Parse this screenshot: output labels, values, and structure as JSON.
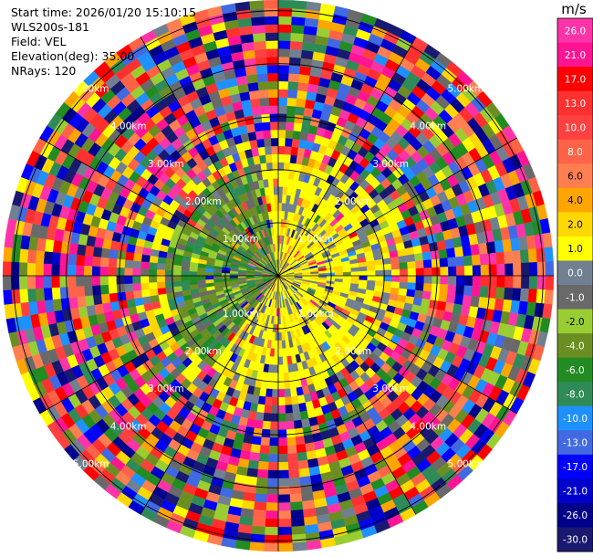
{
  "info": {
    "start_time": "Start time: 2026/01/20 15:10:15",
    "station": "WLS200s-181",
    "field": "Field: VEL",
    "elevation": "Elevation(deg): 35.00",
    "nrays": "NRays: 120"
  },
  "chart_data": {
    "type": "polar-ppi",
    "field": "VEL",
    "unit": "m/s",
    "rays": 120,
    "range_rings_km": [
      "1.00km",
      "2.00km",
      "3.00km",
      "4.00km",
      "5.00km"
    ],
    "range_rings_km_values": [
      1,
      2,
      3,
      4,
      5
    ],
    "max_range_km": 5.2,
    "colorbar": {
      "unit": "m/s",
      "ticks": [
        "26.0",
        "21.0",
        "17.0",
        "13.0",
        "10.0",
        "8.0",
        "6.0",
        "4.0",
        "2.0",
        "1.0",
        "0.0",
        "-1.0",
        "-2.0",
        "-4.0",
        "-6.0",
        "-8.0",
        "-10.0",
        "-13.0",
        "-17.0",
        "-21.0",
        "-26.0",
        "-30.0"
      ],
      "colors": [
        "#ff33a8",
        "#ff1493",
        "#ff0000",
        "#ff3030",
        "#ff4040",
        "#ff6347",
        "#ff7f50",
        "#ffa500",
        "#ffd700",
        "#ffff00",
        "#708090",
        "#696969",
        "#9acd32",
        "#6b8e23",
        "#228b22",
        "#2e8b57",
        "#1e90ff",
        "#4169e1",
        "#0000ff",
        "#0000cd",
        "#00008b",
        "#191970"
      ]
    },
    "observed_pattern": {
      "inner_region_km": 2.2,
      "inner_west_dominant": "-2.0 to -6.0 (green)",
      "inner_east_dominant": "1.0 to 4.0 (yellow)",
      "outer_region": "noise across full palette"
    }
  }
}
